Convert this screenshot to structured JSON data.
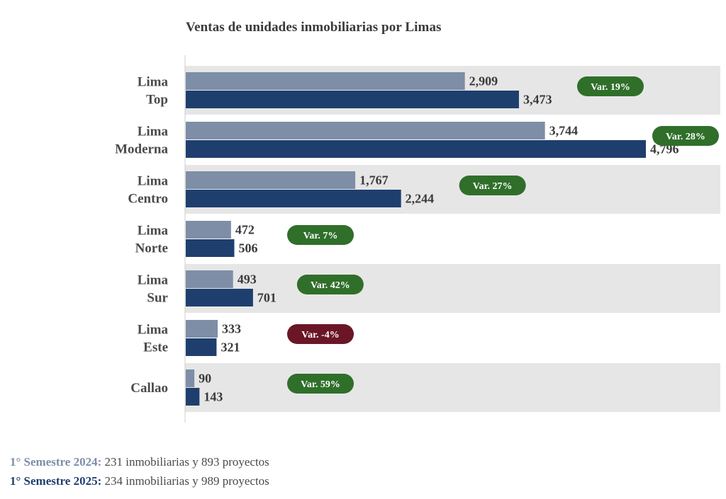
{
  "chart_data": {
    "type": "bar",
    "orientation": "horizontal",
    "title": "Ventas de unidades inmobiliarias por Limas",
    "categories": [
      {
        "lines": [
          "Lima",
          "Top"
        ]
      },
      {
        "lines": [
          "Lima",
          "Moderna"
        ]
      },
      {
        "lines": [
          "Lima",
          "Centro"
        ]
      },
      {
        "lines": [
          "Lima",
          "Norte"
        ]
      },
      {
        "lines": [
          "Lima",
          "Sur"
        ]
      },
      {
        "lines": [
          "Lima",
          "Este"
        ]
      },
      {
        "lines": [
          "Callao"
        ]
      }
    ],
    "series": [
      {
        "name": "1° Semestre 2024",
        "color": "#7d8ea6",
        "values": [
          2909,
          3744,
          1767,
          472,
          493,
          333,
          90
        ],
        "labels": [
          "2,909",
          "3,744",
          "1,767",
          "472",
          "493",
          "333",
          "90"
        ]
      },
      {
        "name": "1° Semestre 2025",
        "color": "#1e3f6e",
        "values": [
          3473,
          4796,
          2244,
          506,
          701,
          321,
          143
        ],
        "labels": [
          "3,473",
          "4,796",
          "2,244",
          "506",
          "701",
          "321",
          "143"
        ]
      }
    ],
    "variations": [
      {
        "text": "Var. 19%",
        "color": "#2f6f2a"
      },
      {
        "text": "Var. 28%",
        "color": "#2f6f2a"
      },
      {
        "text": "Var. 27%",
        "color": "#2f6f2a"
      },
      {
        "text": "Var. 7%",
        "color": "#2f6f2a"
      },
      {
        "text": "Var. 42%",
        "color": "#2f6f2a"
      },
      {
        "text": "Var. -4%",
        "color": "#6b1626"
      },
      {
        "text": "Var. 59%",
        "color": "#2f6f2a"
      }
    ],
    "xlim": [
      0,
      4796
    ],
    "band_color": "#e6e6e6",
    "grid": false
  },
  "legend": {
    "rows": [
      {
        "key": "1° Semestre 2024:",
        "text": " 231 inmobiliarias y 893 proyectos",
        "color": "#7d8ea6"
      },
      {
        "key": "1° Semestre 2025:",
        "text": " 234 inmobiliarias y 989 proyectos",
        "color": "#1e3f6e"
      }
    ]
  }
}
